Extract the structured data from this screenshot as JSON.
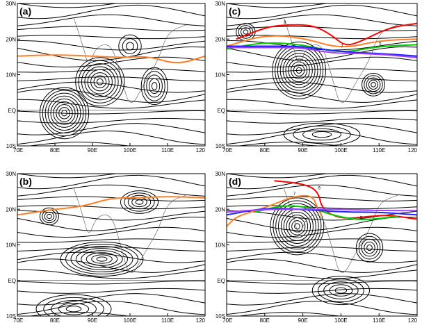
{
  "figure": {
    "panels": [
      {
        "id": "a",
        "label": "(a)",
        "x_ticks": [
          "70E",
          "80E",
          "90E",
          "100E",
          "110E",
          "120"
        ],
        "y_ticks": [
          "30N",
          "20N",
          "10N",
          "EQ",
          "10S"
        ],
        "contours": [
          {
            "color": "#ff7f27",
            "label": ""
          }
        ]
      },
      {
        "id": "b",
        "label": "(b)",
        "x_ticks": [
          "70E",
          "80E",
          "90E",
          "100E",
          "110E",
          "120"
        ],
        "y_ticks": [
          "30N",
          "20N",
          "10N",
          "EQ",
          "10S"
        ],
        "contours": [
          {
            "color": "#ff7f27",
            "label": ""
          }
        ]
      },
      {
        "id": "c",
        "label": "(c)",
        "x_ticks": [
          "70E",
          "80E",
          "90E",
          "100E",
          "110E",
          "120"
        ],
        "y_ticks": [
          "30N",
          "20N",
          "10N",
          "EQ",
          "10S"
        ],
        "contours": [
          {
            "color": "#ff0000",
            "label": "8"
          },
          {
            "color": "#ff7f27",
            "label": "7"
          },
          {
            "color": "#00cc00",
            "label": "5"
          },
          {
            "color": "#2222ff",
            "label": "3"
          },
          {
            "color": "#a040ff",
            "label": "2"
          }
        ]
      },
      {
        "id": "d",
        "label": "(d)",
        "x_ticks": [
          "70E",
          "80E",
          "90E",
          "100E",
          "110E",
          "120"
        ],
        "y_ticks": [
          "30N",
          "20N",
          "10N",
          "EQ",
          "10S"
        ],
        "contours": [
          {
            "color": "#ff0000",
            "label": "8"
          },
          {
            "color": "#ff7f27",
            "label": "7"
          },
          {
            "color": "#00cc00",
            "label": "5"
          },
          {
            "color": "#2222ff",
            "label": "3"
          },
          {
            "color": "#a040ff",
            "label": "2"
          }
        ]
      }
    ]
  }
}
